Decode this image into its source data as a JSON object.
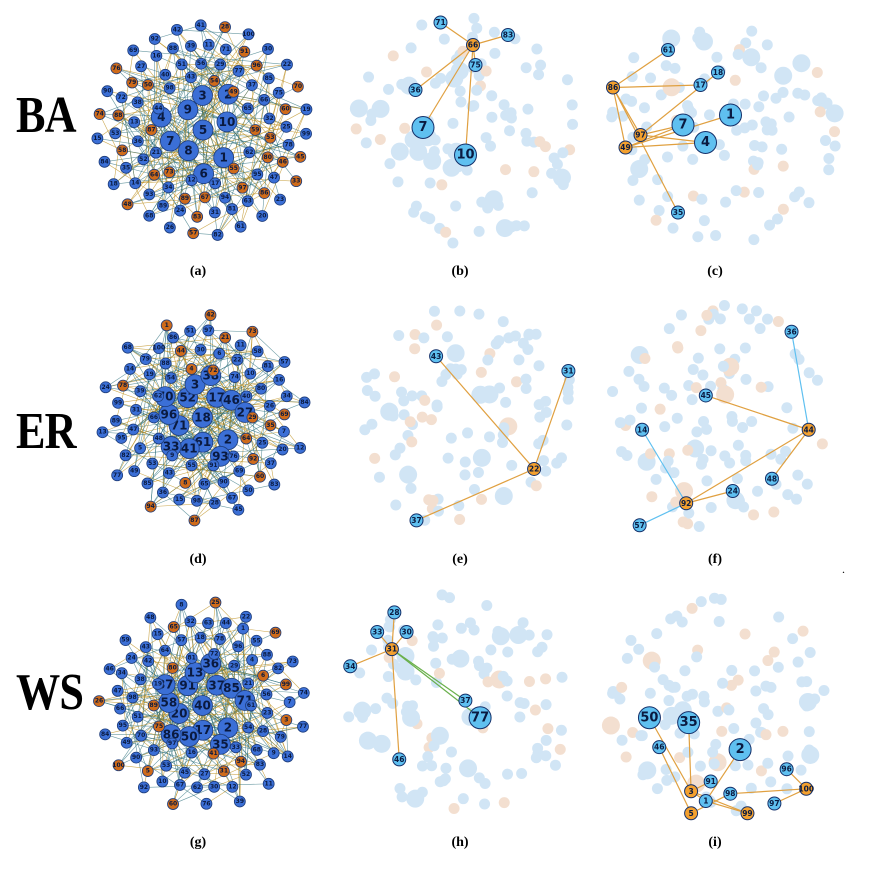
{
  "rows": [
    {
      "label": "BA"
    },
    {
      "label": "ER"
    },
    {
      "label": "WS"
    }
  ],
  "captions": [
    "(a)",
    "(b)",
    "(c)",
    "(d)",
    "(e)",
    "(f)",
    "(g)",
    "(h)",
    "(i)"
  ],
  "stray_mark": ".",
  "colors": {
    "node_blue": "#3b6fd6",
    "node_orange": "#cf6b1a",
    "node_cyan": "#5fc0f0",
    "node_amber": "#f3a02e",
    "edge_dark": "#2a6e7a",
    "edge_highlight": "#e0a040",
    "faded_blue": "#cde3f5",
    "faded_orange": "#f2dccb"
  },
  "panels": {
    "a": {
      "big": [
        "5",
        "1",
        "6",
        "8",
        "7",
        "4",
        "9",
        "3",
        "2",
        "10"
      ],
      "orange": [
        "54",
        "86",
        "64",
        "48",
        "79",
        "83",
        "70",
        "49",
        "57",
        "87",
        "33",
        "88",
        "74",
        "91",
        "53",
        "89",
        "67",
        "60",
        "76",
        "97",
        "59",
        "45",
        "58",
        "28",
        "73",
        "80",
        "96",
        "46",
        "50",
        "55"
      ],
      "small": [
        "82",
        "71",
        "89",
        "62",
        "100",
        "78",
        "84",
        "43",
        "52",
        "99",
        "36",
        "88",
        "15",
        "81",
        "19",
        "20",
        "72",
        "98",
        "38",
        "94",
        "30",
        "23",
        "27",
        "42",
        "31",
        "16",
        "37",
        "29",
        "17",
        "85",
        "35",
        "93",
        "53",
        "56",
        "41",
        "51",
        "68",
        "26",
        "39",
        "95",
        "14",
        "63",
        "47",
        "44",
        "25",
        "22",
        "12",
        "11",
        "65",
        "13",
        "34",
        "61",
        "32",
        "40",
        "21",
        "18",
        "92",
        "24",
        "69",
        "66",
        "75",
        "90",
        "77"
      ]
    },
    "b": {
      "highlight_orange": [
        "66"
      ],
      "highlight_blue": [
        "71",
        "83",
        "75",
        "36"
      ],
      "highlight_big": [
        "7",
        "10"
      ]
    },
    "c": {
      "highlight_orange": [
        "86",
        "97",
        "49"
      ],
      "highlight_blue": [
        "61",
        "18",
        "17",
        "35"
      ],
      "highlight_big": [
        "7",
        "4",
        "1"
      ]
    },
    "d": {
      "big": [
        "18",
        "2",
        "93",
        "61",
        "41",
        "33",
        "71",
        "96",
        "70",
        "52",
        "3",
        "38",
        "17",
        "46",
        "27"
      ],
      "orange": [
        "1",
        "94",
        "29",
        "64",
        "8",
        "21",
        "35",
        "73",
        "60",
        "44",
        "42",
        "4",
        "87",
        "92",
        "69",
        "78",
        "72"
      ],
      "small": [
        "9",
        "62",
        "45",
        "66",
        "36",
        "40",
        "98",
        "47",
        "88",
        "10",
        "11",
        "69",
        "31",
        "84",
        "89",
        "48",
        "95",
        "54",
        "34",
        "79",
        "16",
        "22",
        "90",
        "26",
        "74",
        "53",
        "99",
        "55",
        "39",
        "13",
        "15",
        "14",
        "43",
        "12",
        "25",
        "67",
        "28",
        "68",
        "19",
        "49",
        "83",
        "85",
        "30",
        "100",
        "65",
        "24",
        "51",
        "57",
        "37",
        "5",
        "6",
        "7",
        "20",
        "50",
        "58",
        "76",
        "77",
        "80",
        "81",
        "82",
        "86",
        "91",
        "97"
      ]
    },
    "e": {
      "highlight_orange": [
        "22"
      ],
      "highlight_blue": [
        "43",
        "31",
        "37"
      ]
    },
    "f": {
      "highlight_orange": [
        "44",
        "92"
      ],
      "highlight_blue": [
        "36",
        "45",
        "14",
        "48",
        "24",
        "57"
      ]
    },
    "g": {
      "big": [
        "40",
        "2",
        "35",
        "17",
        "50",
        "86",
        "20",
        "58",
        "87",
        "91",
        "13",
        "36",
        "37",
        "85",
        "71"
      ],
      "orange": [
        "25",
        "75",
        "31",
        "6",
        "26",
        "65",
        "69",
        "60",
        "41",
        "3",
        "5",
        "100",
        "99",
        "89",
        "80",
        "94"
      ],
      "small": [
        "9",
        "29",
        "7",
        "61",
        "28",
        "33",
        "10",
        "34",
        "12",
        "15",
        "72",
        "53",
        "30",
        "73",
        "16",
        "63",
        "19",
        "22",
        "49",
        "57",
        "62",
        "70",
        "74",
        "83",
        "88",
        "92",
        "95",
        "97",
        "8",
        "11",
        "14",
        "18",
        "21",
        "23",
        "24",
        "27",
        "32",
        "38",
        "39",
        "42",
        "43",
        "44",
        "45",
        "46",
        "47",
        "48",
        "51",
        "52",
        "54",
        "55",
        "56",
        "59",
        "64",
        "66",
        "67",
        "68",
        "76",
        "77",
        "78",
        "79",
        "81",
        "82",
        "84",
        "90",
        "93",
        "96",
        "98",
        "1",
        "4"
      ]
    },
    "h": {
      "highlight_orange": [
        "31"
      ],
      "highlight_blue": [
        "28",
        "33",
        "30",
        "34",
        "37",
        "46"
      ],
      "highlight_big": [
        "77"
      ]
    },
    "i": {
      "highlight_orange": [
        "3",
        "5",
        "99",
        "100"
      ],
      "highlight_blue": [
        "46",
        "91",
        "98",
        "96",
        "97",
        "1"
      ],
      "highlight_big": [
        "50",
        "35",
        "2"
      ]
    }
  }
}
